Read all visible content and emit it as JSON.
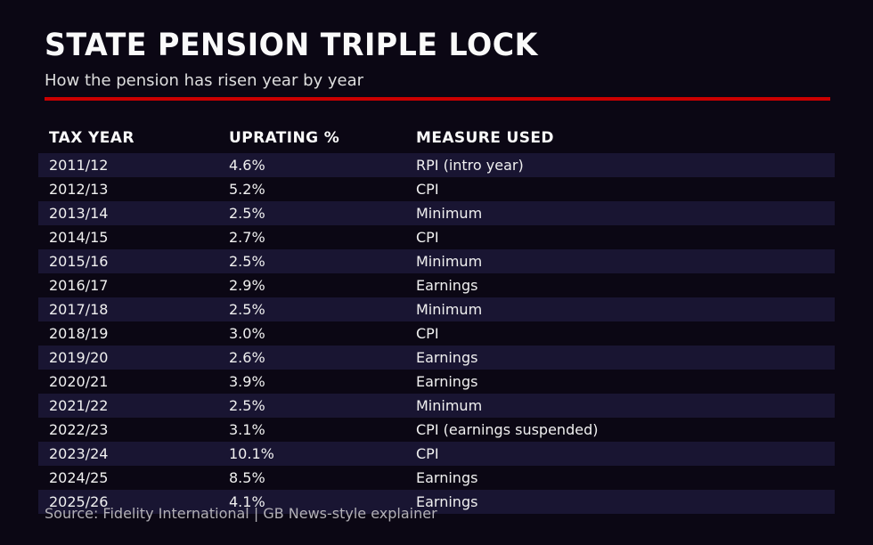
{
  "page": {
    "bg_color": "#0b0714",
    "accent_red": "#cb0000",
    "stripe_color": "#191532"
  },
  "header": {
    "title": "STATE PENSION TRIPLE LOCK",
    "subtitle": "How the pension has risen year by year"
  },
  "table": {
    "columns": [
      "TAX YEAR",
      "UPRATING %",
      "MEASURE USED"
    ],
    "rows": [
      {
        "tax_year": "2011/12",
        "uprating": "4.6%",
        "measure": "RPI (intro year)"
      },
      {
        "tax_year": "2012/13",
        "uprating": "5.2%",
        "measure": "CPI"
      },
      {
        "tax_year": "2013/14",
        "uprating": "2.5%",
        "measure": "Minimum"
      },
      {
        "tax_year": "2014/15",
        "uprating": "2.7%",
        "measure": "CPI"
      },
      {
        "tax_year": "2015/16",
        "uprating": "2.5%",
        "measure": "Minimum"
      },
      {
        "tax_year": "2016/17",
        "uprating": "2.9%",
        "measure": "Earnings"
      },
      {
        "tax_year": "2017/18",
        "uprating": "2.5%",
        "measure": "Minimum"
      },
      {
        "tax_year": "2018/19",
        "uprating": "3.0%",
        "measure": "CPI"
      },
      {
        "tax_year": "2019/20",
        "uprating": "2.6%",
        "measure": "Earnings"
      },
      {
        "tax_year": "2020/21",
        "uprating": "3.9%",
        "measure": "Earnings"
      },
      {
        "tax_year": "2021/22",
        "uprating": "2.5%",
        "measure": "Minimum"
      },
      {
        "tax_year": "2022/23",
        "uprating": "3.1%",
        "measure": "CPI (earnings suspended)"
      },
      {
        "tax_year": "2023/24",
        "uprating": "10.1%",
        "measure": "CPI"
      },
      {
        "tax_year": "2024/25",
        "uprating": "8.5%",
        "measure": "Earnings"
      },
      {
        "tax_year": "2025/26",
        "uprating": "4.1%",
        "measure": "Earnings"
      }
    ]
  },
  "footer": {
    "source": "Source: Fidelity International | GB News-style explainer"
  },
  "chart_data": {
    "type": "table",
    "title": "STATE PENSION TRIPLE LOCK",
    "subtitle": "How the pension has risen year by year",
    "columns": [
      "TAX YEAR",
      "UPRATING %",
      "MEASURE USED"
    ],
    "categories": [
      "2011/12",
      "2012/13",
      "2013/14",
      "2014/15",
      "2015/16",
      "2016/17",
      "2017/18",
      "2018/19",
      "2019/20",
      "2020/21",
      "2021/22",
      "2022/23",
      "2023/24",
      "2024/25",
      "2025/26"
    ],
    "series": [
      {
        "name": "Uprating %",
        "values": [
          4.6,
          5.2,
          2.5,
          2.7,
          2.5,
          2.9,
          2.5,
          3.0,
          2.6,
          3.9,
          2.5,
          3.1,
          10.1,
          8.5,
          4.1
        ]
      },
      {
        "name": "Measure used",
        "values": [
          "RPI (intro year)",
          "CPI",
          "Minimum",
          "CPI",
          "Minimum",
          "Earnings",
          "Minimum",
          "CPI",
          "Earnings",
          "Earnings",
          "Minimum",
          "CPI (earnings suspended)",
          "CPI",
          "Earnings",
          "Earnings"
        ]
      }
    ],
    "source": "Source: Fidelity International | GB News-style explainer",
    "layout": {
      "row_striping": true,
      "stripe_color": "#191532",
      "background": "#0b0714",
      "accent_rule_color": "#cb0000"
    }
  }
}
